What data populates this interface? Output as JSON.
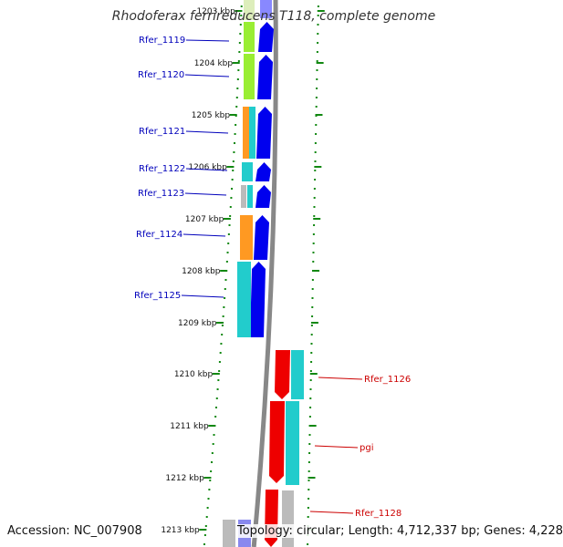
{
  "title": "Rhodoferax ferrireducens T118, complete genome",
  "footer": {
    "accession": "Accession: NC_007908",
    "topology": "Topology: circular; Length: 4,712,337 bp; Genes: 4,228"
  },
  "ticks": [
    "1203 kbp",
    "1204 kbp",
    "1205 kbp",
    "1206 kbp",
    "1207 kbp",
    "1208 kbp",
    "1209 kbp",
    "1210 kbp",
    "1211 kbp",
    "1212 kbp",
    "1213 kbp"
  ],
  "genes_left": [
    {
      "name": "Rfer_1119",
      "color": "#0000bb"
    },
    {
      "name": "Rfer_1120",
      "color": "#0000bb"
    },
    {
      "name": "Rfer_1121",
      "color": "#0000bb"
    },
    {
      "name": "Rfer_1122",
      "color": "#0000bb"
    },
    {
      "name": "Rfer_1123",
      "color": "#0000bb"
    },
    {
      "name": "Rfer_1124",
      "color": "#0000bb"
    },
    {
      "name": "Rfer_1125",
      "color": "#0000bb"
    }
  ],
  "genes_right": [
    {
      "name": "Rfer_1126",
      "color": "#cc0000"
    },
    {
      "name": "pgi",
      "color": "#cc0000"
    },
    {
      "name": "Rfer_1128",
      "color": "#cc0000"
    }
  ],
  "colors": {
    "forward_cds": "#0000ee",
    "reverse_cds": "#ee0000",
    "cog_green": "#99ee33",
    "cog_orange": "#ff9922",
    "cog_cyan": "#22cccc",
    "cog_gray": "#bbbbbb",
    "backbone": "#888888",
    "tick_dots": "#118811"
  }
}
